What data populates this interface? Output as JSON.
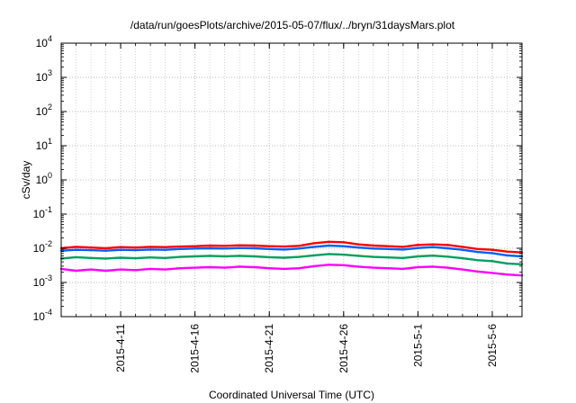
{
  "chart_data": {
    "type": "line",
    "title": "/data/run/goesPlots/archive/2015-05-07/flux/../bryn/31daysMars.plot",
    "xlabel": "Coordinated Universal Time (UTC)",
    "ylabel": "cSv/day",
    "y_scale": "log",
    "ylim": [
      0.0001,
      10000
    ],
    "xlim": [
      "2015-04-07",
      "2015-05-08"
    ],
    "y_ticks": [
      {
        "value": 0.0001,
        "base": "10",
        "exp": "-4"
      },
      {
        "value": 0.001,
        "base": "10",
        "exp": "-3"
      },
      {
        "value": 0.01,
        "base": "10",
        "exp": "-2"
      },
      {
        "value": 0.1,
        "base": "10",
        "exp": "-1"
      },
      {
        "value": 1,
        "base": "10",
        "exp": "0"
      },
      {
        "value": 10,
        "base": "10",
        "exp": "1"
      },
      {
        "value": 100,
        "base": "10",
        "exp": "2"
      },
      {
        "value": 1000,
        "base": "10",
        "exp": "3"
      },
      {
        "value": 10000,
        "base": "10",
        "exp": "4"
      }
    ],
    "x_ticks": [
      {
        "date": "2015-04-11",
        "label": "2015-4-11"
      },
      {
        "date": "2015-04-16",
        "label": "2015-4-16"
      },
      {
        "date": "2015-04-21",
        "label": "2015-4-21"
      },
      {
        "date": "2015-04-26",
        "label": "2015-4-26"
      },
      {
        "date": "2015-05-01",
        "label": "2015-5-1"
      },
      {
        "date": "2015-05-06",
        "label": "2015-5-6"
      }
    ],
    "grid": true,
    "legend": "none",
    "x": [
      "2015-04-07",
      "2015-04-08",
      "2015-04-09",
      "2015-04-10",
      "2015-04-11",
      "2015-04-12",
      "2015-04-13",
      "2015-04-14",
      "2015-04-15",
      "2015-04-16",
      "2015-04-17",
      "2015-04-18",
      "2015-04-19",
      "2015-04-20",
      "2015-04-21",
      "2015-04-22",
      "2015-04-23",
      "2015-04-24",
      "2015-04-25",
      "2015-04-26",
      "2015-04-27",
      "2015-04-28",
      "2015-04-29",
      "2015-04-30",
      "2015-05-01",
      "2015-05-02",
      "2015-05-03",
      "2015-05-04",
      "2015-05-05",
      "2015-05-06",
      "2015-05-07",
      "2015-05-08"
    ],
    "series": [
      {
        "color": "#ff0000",
        "values": [
          0.01,
          0.011,
          0.0105,
          0.01,
          0.0108,
          0.0105,
          0.011,
          0.0108,
          0.0112,
          0.0115,
          0.012,
          0.0118,
          0.0122,
          0.012,
          0.0115,
          0.0112,
          0.0118,
          0.014,
          0.0155,
          0.015,
          0.013,
          0.012,
          0.0115,
          0.011,
          0.0125,
          0.013,
          0.0125,
          0.011,
          0.0095,
          0.009,
          0.008,
          0.0075
        ]
      },
      {
        "color": "#0060ff",
        "values": [
          0.0085,
          0.009,
          0.0088,
          0.0085,
          0.009,
          0.0088,
          0.0092,
          0.009,
          0.0095,
          0.0098,
          0.01,
          0.0098,
          0.0102,
          0.01,
          0.0095,
          0.0092,
          0.0098,
          0.011,
          0.012,
          0.0115,
          0.0105,
          0.0098,
          0.0095,
          0.0092,
          0.0102,
          0.0108,
          0.01,
          0.009,
          0.0078,
          0.0072,
          0.0062,
          0.0058
        ]
      },
      {
        "color": "#00a060",
        "values": [
          0.005,
          0.0055,
          0.0052,
          0.005,
          0.0053,
          0.0051,
          0.0054,
          0.0052,
          0.0056,
          0.0058,
          0.006,
          0.0058,
          0.006,
          0.0058,
          0.0055,
          0.0053,
          0.0056,
          0.0062,
          0.0068,
          0.0065,
          0.006,
          0.0056,
          0.0054,
          0.0052,
          0.0058,
          0.0061,
          0.0057,
          0.0051,
          0.0045,
          0.0042,
          0.0036,
          0.0034
        ]
      },
      {
        "color": "#ff00ff",
        "values": [
          0.0025,
          0.0022,
          0.0024,
          0.0022,
          0.0024,
          0.0023,
          0.0025,
          0.0024,
          0.0026,
          0.0027,
          0.0028,
          0.0027,
          0.0029,
          0.0028,
          0.0026,
          0.0025,
          0.0026,
          0.003,
          0.0033,
          0.0032,
          0.0029,
          0.0027,
          0.0026,
          0.0025,
          0.0028,
          0.0029,
          0.0027,
          0.0024,
          0.0021,
          0.0019,
          0.0017,
          0.0016
        ]
      }
    ]
  }
}
